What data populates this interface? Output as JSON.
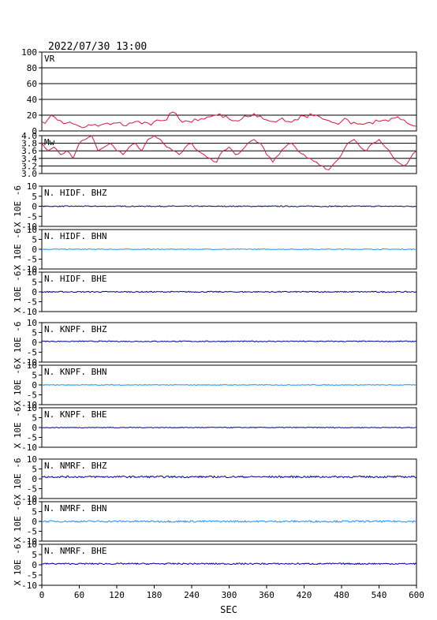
{
  "header": {
    "timestamp": "2022/07/30 13:00"
  },
  "chart_data": {
    "type": "line",
    "xlabel": "SEC",
    "xlim": [
      0,
      600
    ],
    "x_ticks": [
      0,
      60,
      120,
      180,
      240,
      300,
      360,
      420,
      480,
      540,
      600
    ],
    "panels": [
      {
        "label": "VR",
        "color": "#dc143c",
        "ylim": [
          0,
          100
        ],
        "y_ticks": [
          0,
          20,
          40,
          60,
          80,
          100
        ],
        "grid": true,
        "x": [
          0,
          10,
          20,
          30,
          40,
          50,
          60,
          70,
          80,
          90,
          100,
          110,
          120,
          130,
          140,
          150,
          160,
          170,
          180,
          190,
          200,
          210,
          220,
          230,
          240,
          250,
          260,
          270,
          280,
          290,
          300,
          310,
          320,
          330,
          340,
          350,
          360,
          370,
          380,
          390,
          400,
          410,
          420,
          430,
          440,
          450,
          460,
          470,
          480,
          490,
          500,
          510,
          520,
          530,
          540,
          550,
          560,
          570,
          580,
          590,
          600
        ],
        "values": [
          12,
          15,
          18,
          13,
          10,
          9,
          6,
          5,
          7,
          6,
          9,
          8,
          10,
          7,
          10,
          12,
          9,
          10,
          12,
          13,
          14,
          24,
          15,
          13,
          11,
          13,
          15,
          18,
          20,
          17,
          15,
          13,
          15,
          18,
          22,
          19,
          14,
          12,
          14,
          12,
          11,
          14,
          19,
          22,
          20,
          15,
          13,
          10,
          12,
          14,
          11,
          9,
          10,
          9,
          12,
          14,
          16,
          18,
          14,
          8,
          6
        ]
      },
      {
        "label": "Mw",
        "color": "#dc143c",
        "ylim": [
          3.0,
          4.0
        ],
        "y_ticks": [
          3.0,
          3.2,
          3.4,
          3.6,
          3.8,
          4.0
        ],
        "grid": true,
        "x": [
          0,
          10,
          20,
          30,
          40,
          50,
          60,
          70,
          80,
          90,
          100,
          110,
          120,
          130,
          140,
          150,
          160,
          170,
          180,
          190,
          200,
          210,
          220,
          230,
          240,
          250,
          260,
          270,
          280,
          290,
          300,
          310,
          320,
          330,
          340,
          350,
          360,
          370,
          380,
          390,
          400,
          410,
          420,
          430,
          440,
          450,
          460,
          470,
          480,
          490,
          500,
          510,
          520,
          530,
          540,
          550,
          560,
          570,
          580,
          590,
          600
        ],
        "values": [
          3.8,
          3.6,
          3.7,
          3.5,
          3.6,
          3.4,
          3.8,
          3.9,
          4.0,
          3.6,
          3.7,
          3.8,
          3.6,
          3.5,
          3.7,
          3.8,
          3.6,
          3.9,
          4.0,
          3.9,
          3.7,
          3.6,
          3.5,
          3.7,
          3.8,
          3.6,
          3.5,
          3.4,
          3.3,
          3.6,
          3.7,
          3.5,
          3.6,
          3.8,
          3.9,
          3.8,
          3.5,
          3.3,
          3.5,
          3.7,
          3.8,
          3.6,
          3.5,
          3.4,
          3.3,
          3.2,
          3.1,
          3.3,
          3.5,
          3.8,
          3.9,
          3.7,
          3.6,
          3.8,
          3.9,
          3.7,
          3.5,
          3.3,
          3.2,
          3.4,
          3.6
        ]
      },
      {
        "label": "N. HIDF. BHZ",
        "color": "#00008b",
        "ylim": [
          -10,
          10
        ],
        "y_ticks": [
          -10,
          -5,
          0,
          5,
          10
        ],
        "ylabel": "X 10E -6",
        "offset": 0,
        "noise": 0.25
      },
      {
        "label": "N. HIDF. BHN",
        "color": "#1e90ff",
        "ylim": [
          -10,
          10
        ],
        "y_ticks": [
          -10,
          -5,
          0,
          5,
          10
        ],
        "ylabel": "X 10E -6",
        "offset": 0,
        "noise": 0.2
      },
      {
        "label": "N. HIDF. BHE",
        "color": "#00008b",
        "ylim": [
          -10,
          10
        ],
        "y_ticks": [
          -10,
          -5,
          0,
          5,
          10
        ],
        "ylabel": "X 10E -6",
        "offset": 0,
        "noise": 0.3
      },
      {
        "label": "N. KNPF. BHZ",
        "color": "#00008b",
        "ylim": [
          -10,
          10
        ],
        "y_ticks": [
          -10,
          -5,
          0,
          5,
          10
        ],
        "ylabel": "X 10E -6",
        "offset": 0.5,
        "noise": 0.25
      },
      {
        "label": "N. KNPF. BHN",
        "color": "#1e90ff",
        "ylim": [
          -10,
          10
        ],
        "y_ticks": [
          -10,
          -5,
          0,
          5,
          10
        ],
        "ylabel": "X 10E -6",
        "offset": 0,
        "noise": 0.2
      },
      {
        "label": "N. KNPF. BHE",
        "color": "#00008b",
        "ylim": [
          -10,
          10
        ],
        "y_ticks": [
          -10,
          -5,
          0,
          5,
          10
        ],
        "ylabel": "X 10E -6",
        "offset": 0,
        "noise": 0.2
      },
      {
        "label": "N. NMRF. BHZ",
        "color": "#00008b",
        "ylim": [
          -10,
          10
        ],
        "y_ticks": [
          -10,
          -5,
          0,
          5,
          10
        ],
        "ylabel": "X 10E -6",
        "offset": 1,
        "noise": 0.45
      },
      {
        "label": "N. NMRF. BHN",
        "color": "#1e90ff",
        "ylim": [
          -10,
          10
        ],
        "y_ticks": [
          -10,
          -5,
          0,
          5,
          10
        ],
        "ylabel": "X 10E -6",
        "offset": 0,
        "noise": 0.45
      },
      {
        "label": "N. NMRF. BHE",
        "color": "#00008b",
        "ylim": [
          -10,
          10
        ],
        "y_ticks": [
          -10,
          -5,
          0,
          5,
          10
        ],
        "ylabel": "X 10E -6",
        "offset": 0.5,
        "noise": 0.35
      }
    ]
  }
}
